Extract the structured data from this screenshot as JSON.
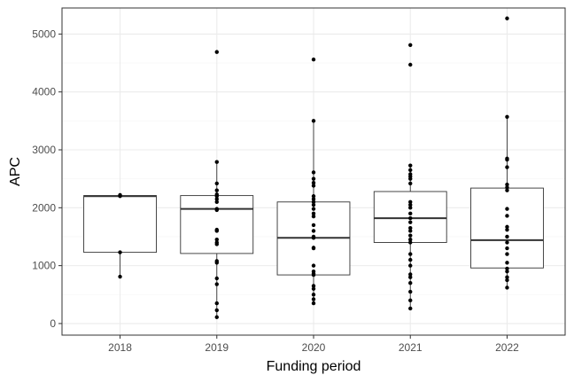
{
  "chart_data": {
    "type": "boxplot",
    "title": "",
    "xlabel": "Funding period",
    "ylabel": "APC",
    "ylim": [
      -200,
      5450
    ],
    "y_ticks": [
      0,
      1000,
      2000,
      3000,
      4000,
      5000
    ],
    "y_tick_labels": [
      "0",
      "1000",
      "2000",
      "3000",
      "4000",
      "5000"
    ],
    "categories": [
      "2018",
      "2019",
      "2020",
      "2021",
      "2022"
    ],
    "grid": true,
    "boxes": [
      {
        "category": "2018",
        "whisker_low": 810,
        "q1": 1230,
        "median": 2200,
        "q3": 2210,
        "whisker_high": 2210
      },
      {
        "category": "2019",
        "whisker_low": 110,
        "q1": 1210,
        "median": 1980,
        "q3": 2210,
        "whisker_high": 2790
      },
      {
        "category": "2020",
        "whisker_low": 320,
        "q1": 840,
        "median": 1480,
        "q3": 2100,
        "whisker_high": 3500
      },
      {
        "category": "2021",
        "whisker_low": 260,
        "q1": 1400,
        "median": 1820,
        "q3": 2280,
        "whisker_high": 2730
      },
      {
        "category": "2022",
        "whisker_low": 610,
        "q1": 960,
        "median": 1440,
        "q3": 2340,
        "whisker_high": 3560
      }
    ],
    "points": [
      {
        "category": "2018",
        "values": [
          2220,
          2200,
          1230,
          810
        ]
      },
      {
        "category": "2019",
        "values": [
          4690,
          2790,
          2420,
          2300,
          2230,
          2200,
          2150,
          2100,
          1980,
          1960,
          1620,
          1600,
          1450,
          1400,
          1370,
          1080,
          1050,
          780,
          680,
          350,
          230,
          110
        ]
      },
      {
        "category": "2020",
        "values": [
          4560,
          3500,
          2610,
          2500,
          2430,
          2380,
          2200,
          2150,
          2100,
          2050,
          1980,
          1900,
          1850,
          1700,
          1600,
          1500,
          1480,
          1310,
          1300,
          1000,
          900,
          860,
          840,
          650,
          600,
          500,
          420,
          350
        ]
      },
      {
        "category": "2021",
        "values": [
          4810,
          4470,
          2730,
          2650,
          2580,
          2540,
          2500,
          2420,
          2100,
          2050,
          2000,
          1900,
          1820,
          1750,
          1650,
          1600,
          1520,
          1450,
          1400,
          1200,
          1100,
          1000,
          850,
          800,
          700,
          550,
          400,
          260
        ]
      },
      {
        "category": "2022",
        "values": [
          5270,
          3570,
          2850,
          2830,
          2700,
          2400,
          2350,
          2300,
          1980,
          1860,
          1670,
          1620,
          1500,
          1400,
          1300,
          1200,
          1050,
          950,
          900,
          800,
          750,
          620
        ]
      }
    ],
    "colors": {
      "panel_border": "#333333",
      "grid_major": "#ebebeb",
      "grid_minor": "#f5f5f5",
      "box": "#333333",
      "point": "#000000"
    }
  }
}
